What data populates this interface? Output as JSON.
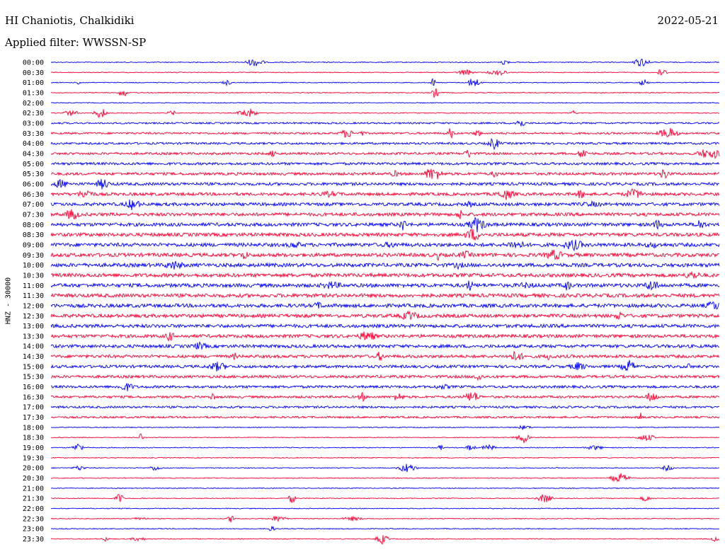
{
  "header": {
    "station": "HI Chaniotis, Chalkidiki",
    "date": "2022-05-21",
    "filter": "Applied filter: WWSSN-SP"
  },
  "chart_data": {
    "type": "line",
    "title": "HI Chaniotis, Chalkidiki",
    "ylabel": "HNZ - 30000",
    "colors": {
      "even": "#0000ff",
      "odd": "#ff0033"
    },
    "rows": [
      "00:00",
      "00:30",
      "01:00",
      "01:30",
      "02:00",
      "02:30",
      "03:00",
      "03:30",
      "04:00",
      "04:30",
      "05:00",
      "05:30",
      "06:00",
      "06:30",
      "07:00",
      "07:30",
      "08:00",
      "08:30",
      "09:00",
      "09:30",
      "10:00",
      "10:30",
      "11:00",
      "11:30",
      "12:00",
      "12:30",
      "13:00",
      "13:30",
      "14:00",
      "14:30",
      "15:00",
      "15:30",
      "16:00",
      "16:30",
      "17:00",
      "17:30",
      "18:00",
      "18:30",
      "19:00",
      "19:30",
      "20:00",
      "20:30",
      "21:00",
      "21:30",
      "22:00",
      "22:30",
      "23:00",
      "23:30"
    ]
  }
}
